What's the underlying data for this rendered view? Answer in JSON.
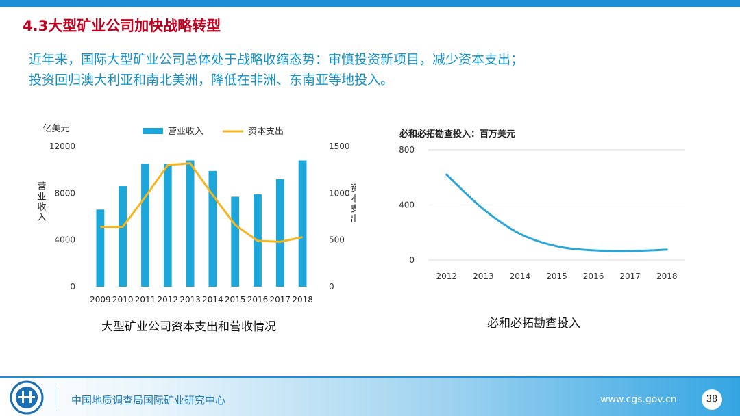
{
  "slide": {
    "title": "4.3大型矿业公司加快战略转型",
    "lead_line1": "近年来，国际大型矿业公司总体处于战略收缩态势：审慎投资新项目，减少资本支出；",
    "lead_line2": "投资回归澳大利亚和南北美洲，降低在非洲、东南亚等地投入。",
    "page_number": "38"
  },
  "footer": {
    "org": "中国地质调查局国际矿业研究中心",
    "site": "www.cgs.gov.cn"
  },
  "colors": {
    "accent_blue": "#1c8fd6",
    "bar_blue": "#1da6d9",
    "line_orange": "#f5b51f",
    "title_red": "#c0001e",
    "lead_blue": "#1593c9"
  },
  "chart_data": [
    {
      "type": "bar",
      "title": "大型矿业公司资本支出和营收情况",
      "unit_label": "亿美元",
      "categories": [
        "2009",
        "2010",
        "2011",
        "2012",
        "2013",
        "2014",
        "2015",
        "2016",
        "2017",
        "2018"
      ],
      "series": [
        {
          "name": "营业收入",
          "type": "bar",
          "axis": "left",
          "values": [
            6600,
            8600,
            10500,
            10500,
            10800,
            9900,
            7700,
            7900,
            9200,
            10800
          ]
        },
        {
          "name": "资本支出",
          "type": "line",
          "axis": "right",
          "values": [
            640,
            640,
            960,
            1300,
            1320,
            980,
            660,
            490,
            480,
            530
          ]
        }
      ],
      "ylabel": "营业收入",
      "y2label": "资本支出",
      "ylim": [
        0,
        12000
      ],
      "y2lim": [
        0,
        1500
      ],
      "yticks": [
        "0",
        "4000",
        "8000",
        "12000"
      ],
      "y2ticks": [
        "0",
        "500",
        "1000",
        "1500"
      ],
      "legend": "top"
    },
    {
      "type": "line",
      "title": "必和必拓勘查投入：百万美元",
      "caption": "必和必拓勘查投入",
      "categories": [
        "2012",
        "2013",
        "2014",
        "2015",
        "2016",
        "2017",
        "2018"
      ],
      "values": [
        620,
        370,
        190,
        100,
        70,
        65,
        75
      ],
      "ylim": [
        0,
        800
      ],
      "yticks": [
        "0",
        "400",
        "800"
      ],
      "grid": true
    }
  ]
}
